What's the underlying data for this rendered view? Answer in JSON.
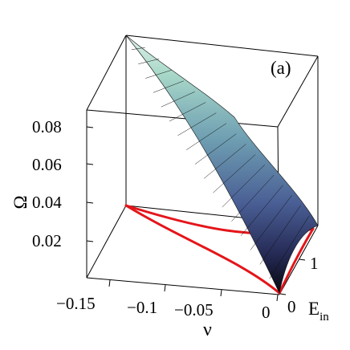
{
  "chart_data": {
    "type": "surface3d",
    "panel_label": "(a)",
    "xlabel": "ν",
    "ylabel_base": "E",
    "ylabel_sub": "in",
    "zlabel": "Ω",
    "x_ticks": [
      "−0.15",
      "−0.1",
      "−0.05",
      "0"
    ],
    "y_ticks": [
      "0",
      "1"
    ],
    "z_ticks": [
      "0.02",
      "0.04",
      "0.06",
      "0.08"
    ],
    "xlim": [
      -0.17,
      0
    ],
    "ylim": [
      0,
      2
    ],
    "zlim": [
      0,
      0.1
    ],
    "surface": {
      "nu_range": [
        -0.17,
        0
      ],
      "Ein_range": [
        0,
        2
      ],
      "omega_at_corners": {
        "nu_min": 0.1,
        "nu_max": 0
      },
      "colormap": [
        "#0c0c20",
        "#2a3566",
        "#4a689b",
        "#72a4b4",
        "#aedccf"
      ]
    },
    "projections": {
      "color": "#e4151a",
      "curves": [
        "lower-curve",
        "upper-curve"
      ]
    }
  }
}
